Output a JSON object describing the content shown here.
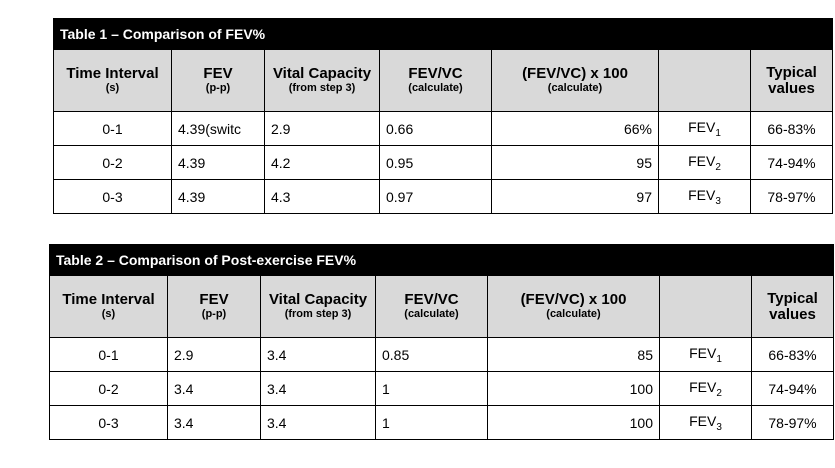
{
  "table1": {
    "caption": "Table 1 – Comparison of FEV%",
    "headers": {
      "time": "Time Interval",
      "time_sub": "(s)",
      "fev": "FEV",
      "fev_sub": "(p-p)",
      "vc": "Vital Capacity",
      "vc_sub": "(from step 3)",
      "ratio": "FEV/VC",
      "ratio_sub": "(calculate)",
      "pct": "(FEV/VC) x 100",
      "pct_sub": "(calculate)",
      "blank": "",
      "typical": "Typical values"
    },
    "rows": [
      {
        "time": "0-1",
        "fev": "4.39(switc",
        "vc": "2.9",
        "ratio": "0.66",
        "pct": "66%",
        "label": "FEV",
        "label_sub": "1",
        "typical": "66-83%"
      },
      {
        "time": "0-2",
        "fev": "4.39",
        "vc": "4.2",
        "ratio": "0.95",
        "pct": "95",
        "label": "FEV",
        "label_sub": "2",
        "typical": "74-94%"
      },
      {
        "time": "0-3",
        "fev": "4.39",
        "vc": "4.3",
        "ratio": "0.97",
        "pct": "97",
        "label": "FEV",
        "label_sub": "3",
        "typical": "78-97%"
      }
    ]
  },
  "table2": {
    "caption": "Table 2 – Comparison of Post-exercise FEV%",
    "headers": {
      "time": "Time Interval",
      "time_sub": "(s)",
      "fev": "FEV",
      "fev_sub": "(p-p)",
      "vc": "Vital Capacity",
      "vc_sub": "(from step 3)",
      "ratio": "FEV/VC",
      "ratio_sub": "(calculate)",
      "pct": "(FEV/VC) x 100",
      "pct_sub": "(calculate)",
      "blank": "",
      "typical": "Typical values"
    },
    "rows": [
      {
        "time": "0-1",
        "fev": "2.9",
        "vc": "3.4",
        "ratio": "0.85",
        "pct": "85",
        "label": "FEV",
        "label_sub": "1",
        "typical": "66-83%"
      },
      {
        "time": "0-2",
        "fev": "3.4",
        "vc": "3.4",
        "ratio": "1",
        "pct": "100",
        "label": "FEV",
        "label_sub": "2",
        "typical": "74-94%"
      },
      {
        "time": "0-3",
        "fev": "3.4",
        "vc": "3.4",
        "ratio": "1",
        "pct": "100",
        "label": "FEV",
        "label_sub": "3",
        "typical": "78-97%"
      }
    ]
  }
}
